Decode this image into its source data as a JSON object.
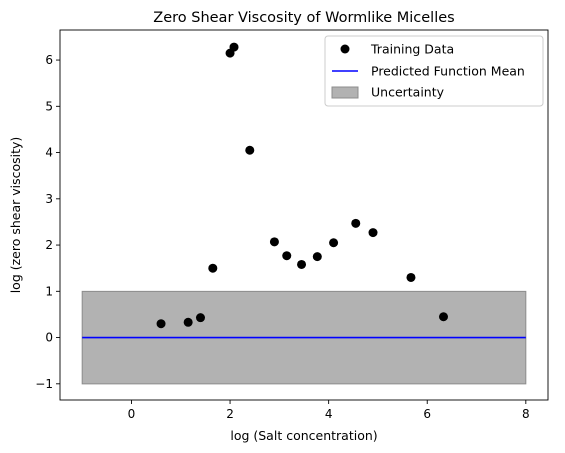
{
  "chart_data": {
    "type": "scatter",
    "title": "Zero Shear Viscosity of Wormlike Micelles",
    "xlabel": "log (Salt concentration)",
    "ylabel": "log (zero shear viscosity)",
    "xlim": [
      -1.45,
      8.45
    ],
    "ylim": [
      -1.35,
      6.65
    ],
    "xticks": [
      0,
      2,
      4,
      6,
      8
    ],
    "xtick_labels": [
      "0",
      "2",
      "4",
      "6",
      "8"
    ],
    "yticks": [
      -1,
      0,
      1,
      2,
      3,
      4,
      5,
      6
    ],
    "ytick_labels": [
      "−1",
      "0",
      "1",
      "2",
      "3",
      "4",
      "5",
      "6"
    ],
    "grid": false,
    "legend_position": "top-right",
    "series": [
      {
        "name": "Training Data",
        "kind": "scatter",
        "color": "#000000",
        "marker": "circle",
        "points": [
          {
            "x": 0.6,
            "y": 0.3
          },
          {
            "x": 1.15,
            "y": 0.33
          },
          {
            "x": 1.4,
            "y": 0.43
          },
          {
            "x": 1.65,
            "y": 1.5
          },
          {
            "x": 2.0,
            "y": 6.15
          },
          {
            "x": 2.08,
            "y": 6.28
          },
          {
            "x": 2.4,
            "y": 4.05
          },
          {
            "x": 2.9,
            "y": 2.07
          },
          {
            "x": 3.15,
            "y": 1.77
          },
          {
            "x": 3.45,
            "y": 1.58
          },
          {
            "x": 3.77,
            "y": 1.75
          },
          {
            "x": 4.1,
            "y": 2.05
          },
          {
            "x": 4.55,
            "y": 2.47
          },
          {
            "x": 4.9,
            "y": 2.27
          },
          {
            "x": 5.67,
            "y": 1.3
          },
          {
            "x": 6.33,
            "y": 0.45
          }
        ]
      },
      {
        "name": "Predicted Function Mean",
        "kind": "line",
        "color": "#0000ff",
        "x": [
          -1,
          8
        ],
        "y": [
          0,
          0
        ]
      },
      {
        "name": "Uncertainty",
        "kind": "band",
        "color": "#b2b2b2",
        "edge_color": "#8c8c8c",
        "x": [
          -1,
          8
        ],
        "lower": [
          -1,
          -1
        ],
        "upper": [
          1,
          1
        ]
      }
    ]
  }
}
